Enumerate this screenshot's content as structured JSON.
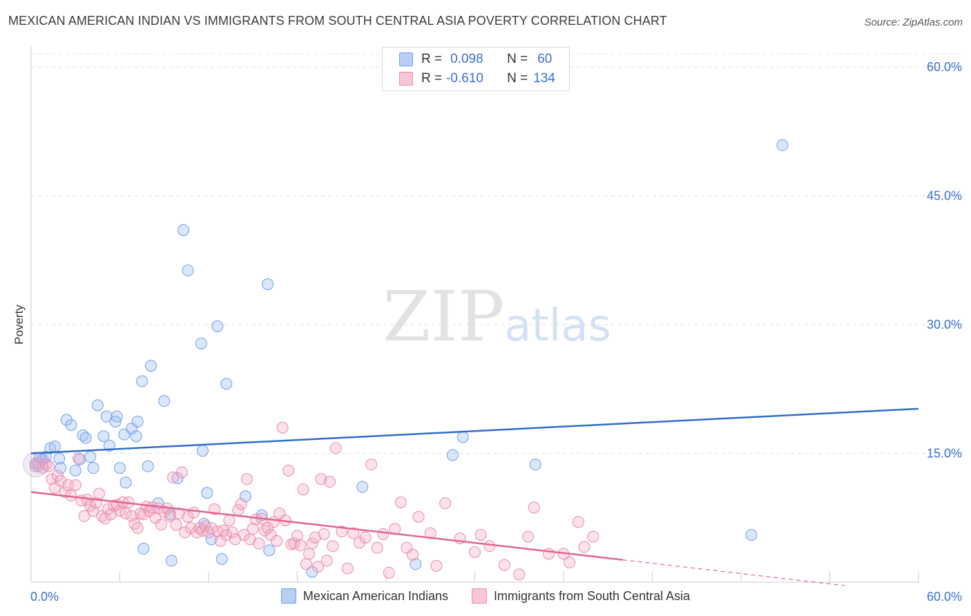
{
  "header": {
    "title": "MEXICAN AMERICAN INDIAN VS IMMIGRANTS FROM SOUTH CENTRAL ASIA POVERTY CORRELATION CHART",
    "source": "Source: ZipAtlas.com"
  },
  "watermark": {
    "zip": "ZIP",
    "atlas": "atlas"
  },
  "legend": {
    "rows": [
      {
        "r_key": "R =",
        "r_value": "0.098",
        "n_key": "N =",
        "n_value": "60",
        "color": "#a9c4ef",
        "border": "#5b87d9"
      },
      {
        "r_key": "R =",
        "r_value": "-0.610",
        "n_key": "N =",
        "n_value": "134",
        "color": "#f6bcd0",
        "border": "#e27ba0"
      }
    ]
  },
  "bottom_legend": {
    "series1": "Mexican American Indians",
    "series2": "Immigrants from South Central Asia"
  },
  "chart_data": {
    "type": "scatter",
    "title": "MEXICAN AMERICAN INDIAN VS IMMIGRANTS FROM SOUTH CENTRAL ASIA POVERTY CORRELATION CHART",
    "xlabel": "",
    "ylabel": "Poverty",
    "xlim": [
      0,
      60
    ],
    "ylim": [
      0,
      63
    ],
    "x_tick_labels": [
      "0.0%",
      "60.0%"
    ],
    "y_tick_labels": [
      {
        "value": 15,
        "label": "15.0%"
      },
      {
        "value": 30,
        "label": "30.0%"
      },
      {
        "value": 45,
        "label": "45.0%"
      },
      {
        "value": 60,
        "label": "60.0%"
      }
    ],
    "grid": true,
    "legend_position": "top-center",
    "series": [
      {
        "name": "Mexican American Indians",
        "color": "#6f9ee6",
        "fill": "rgba(150,185,240,0.35)",
        "trend": {
          "x": [
            0,
            60
          ],
          "y": [
            15.0,
            20.2
          ],
          "color": "#2f6cc9"
        },
        "points": [
          [
            0.3,
            13.8
          ],
          [
            0.5,
            13.5
          ],
          [
            0.6,
            14.5
          ],
          [
            0.8,
            14.3
          ],
          [
            1.0,
            14.6
          ],
          [
            1.3,
            15.6
          ],
          [
            1.6,
            15.8
          ],
          [
            1.9,
            14.4
          ],
          [
            2.0,
            13.3
          ],
          [
            2.4,
            18.9
          ],
          [
            2.7,
            18.3
          ],
          [
            3.0,
            13.0
          ],
          [
            3.3,
            14.3
          ],
          [
            3.5,
            17.1
          ],
          [
            3.7,
            16.8
          ],
          [
            4.0,
            14.6
          ],
          [
            4.2,
            13.3
          ],
          [
            4.5,
            20.6
          ],
          [
            4.9,
            17.0
          ],
          [
            5.1,
            19.3
          ],
          [
            5.3,
            15.9
          ],
          [
            5.7,
            18.7
          ],
          [
            5.8,
            19.3
          ],
          [
            6.0,
            13.3
          ],
          [
            6.3,
            17.2
          ],
          [
            6.4,
            11.6
          ],
          [
            6.8,
            17.9
          ],
          [
            7.1,
            17.0
          ],
          [
            7.2,
            18.7
          ],
          [
            7.5,
            23.4
          ],
          [
            7.6,
            3.9
          ],
          [
            7.9,
            13.5
          ],
          [
            8.1,
            25.2
          ],
          [
            8.6,
            9.2
          ],
          [
            9.0,
            21.1
          ],
          [
            9.4,
            7.9
          ],
          [
            9.5,
            2.5
          ],
          [
            9.9,
            12.1
          ],
          [
            10.3,
            41.0
          ],
          [
            10.6,
            36.3
          ],
          [
            11.5,
            27.8
          ],
          [
            11.6,
            15.3
          ],
          [
            11.7,
            6.8
          ],
          [
            11.9,
            10.4
          ],
          [
            12.2,
            5.0
          ],
          [
            12.6,
            29.8
          ],
          [
            12.9,
            2.7
          ],
          [
            13.2,
            23.1
          ],
          [
            14.5,
            10.0
          ],
          [
            15.6,
            7.8
          ],
          [
            16.0,
            34.7
          ],
          [
            16.1,
            3.7
          ],
          [
            19.0,
            1.2
          ],
          [
            22.4,
            11.1
          ],
          [
            26.0,
            2.1
          ],
          [
            28.5,
            14.8
          ],
          [
            29.2,
            16.9
          ],
          [
            34.1,
            13.7
          ],
          [
            48.7,
            5.5
          ],
          [
            50.8,
            50.9
          ]
        ]
      },
      {
        "name": "Immigrants from South Central Asia",
        "color": "#e88aab",
        "fill": "rgba(244,170,196,0.35)",
        "trend": {
          "x": [
            0,
            40
          ],
          "y": [
            10.5,
            2.6
          ],
          "color": "#e0658e"
        },
        "trend_dashed": {
          "x": [
            40,
            55
          ],
          "y": [
            2.6,
            -0.4
          ]
        },
        "points": [
          [
            0.3,
            13.5
          ],
          [
            0.5,
            13.9
          ],
          [
            0.8,
            13.3
          ],
          [
            1.0,
            13.7
          ],
          [
            1.2,
            13.5
          ],
          [
            1.4,
            12.0
          ],
          [
            1.6,
            11.0
          ],
          [
            1.8,
            12.4
          ],
          [
            2.0,
            11.8
          ],
          [
            2.3,
            10.5
          ],
          [
            2.5,
            11.3
          ],
          [
            2.7,
            10.1
          ],
          [
            3.0,
            11.3
          ],
          [
            3.2,
            14.4
          ],
          [
            3.4,
            9.5
          ],
          [
            3.6,
            7.7
          ],
          [
            3.8,
            9.6
          ],
          [
            4.0,
            8.9
          ],
          [
            4.2,
            8.3
          ],
          [
            4.4,
            9.2
          ],
          [
            4.6,
            10.3
          ],
          [
            4.8,
            7.7
          ],
          [
            5.0,
            7.4
          ],
          [
            5.2,
            8.5
          ],
          [
            5.4,
            7.9
          ],
          [
            5.6,
            8.9
          ],
          [
            5.8,
            9.0
          ],
          [
            6.0,
            8.3
          ],
          [
            6.2,
            9.3
          ],
          [
            6.4,
            8.0
          ],
          [
            6.6,
            9.3
          ],
          [
            6.8,
            7.7
          ],
          [
            7.0,
            6.8
          ],
          [
            7.2,
            6.3
          ],
          [
            7.4,
            8.0
          ],
          [
            7.6,
            7.9
          ],
          [
            7.8,
            8.8
          ],
          [
            8.0,
            8.3
          ],
          [
            8.2,
            8.7
          ],
          [
            8.4,
            7.5
          ],
          [
            8.6,
            8.6
          ],
          [
            8.8,
            6.7
          ],
          [
            9.0,
            8.2
          ],
          [
            9.2,
            8.6
          ],
          [
            9.4,
            7.7
          ],
          [
            9.6,
            12.2
          ],
          [
            9.8,
            6.7
          ],
          [
            10.0,
            8.0
          ],
          [
            10.2,
            12.8
          ],
          [
            10.4,
            5.8
          ],
          [
            10.6,
            7.6
          ],
          [
            10.8,
            6.3
          ],
          [
            11.0,
            8.1
          ],
          [
            11.2,
            5.8
          ],
          [
            11.4,
            6.3
          ],
          [
            11.6,
            6.0
          ],
          [
            11.8,
            6.5
          ],
          [
            12.0,
            5.8
          ],
          [
            12.2,
            6.3
          ],
          [
            12.4,
            8.5
          ],
          [
            12.6,
            5.9
          ],
          [
            12.8,
            4.8
          ],
          [
            13.0,
            6.0
          ],
          [
            13.2,
            5.5
          ],
          [
            13.4,
            7.2
          ],
          [
            13.6,
            5.8
          ],
          [
            13.8,
            5.0
          ],
          [
            14.0,
            8.4
          ],
          [
            14.2,
            9.1
          ],
          [
            14.4,
            5.5
          ],
          [
            14.6,
            12.0
          ],
          [
            14.8,
            5.0
          ],
          [
            15.0,
            6.2
          ],
          [
            15.2,
            7.3
          ],
          [
            15.4,
            4.5
          ],
          [
            15.6,
            7.4
          ],
          [
            15.8,
            6.0
          ],
          [
            16.0,
            6.3
          ],
          [
            16.2,
            5.5
          ],
          [
            16.4,
            7.0
          ],
          [
            16.6,
            4.8
          ],
          [
            16.8,
            8.0
          ],
          [
            17.0,
            18.0
          ],
          [
            17.2,
            7.2
          ],
          [
            17.4,
            13.0
          ],
          [
            17.6,
            4.4
          ],
          [
            17.8,
            4.5
          ],
          [
            18.0,
            5.4
          ],
          [
            18.2,
            4.3
          ],
          [
            18.4,
            10.8
          ],
          [
            18.6,
            2.1
          ],
          [
            18.8,
            3.3
          ],
          [
            19.0,
            4.5
          ],
          [
            19.2,
            5.2
          ],
          [
            19.4,
            1.8
          ],
          [
            19.6,
            12.0
          ],
          [
            19.8,
            5.6
          ],
          [
            20.0,
            2.5
          ],
          [
            20.2,
            11.7
          ],
          [
            20.4,
            4.2
          ],
          [
            20.6,
            15.6
          ],
          [
            21.0,
            5.9
          ],
          [
            21.4,
            1.6
          ],
          [
            21.8,
            5.7
          ],
          [
            22.2,
            4.6
          ],
          [
            22.6,
            5.2
          ],
          [
            23.0,
            13.7
          ],
          [
            23.4,
            4.0
          ],
          [
            23.8,
            5.6
          ],
          [
            24.2,
            1.1
          ],
          [
            24.6,
            6.2
          ],
          [
            25.0,
            9.3
          ],
          [
            25.4,
            4.0
          ],
          [
            25.8,
            3.2
          ],
          [
            26.2,
            7.6
          ],
          [
            27.0,
            5.7
          ],
          [
            27.4,
            1.9
          ],
          [
            28.0,
            9.2
          ],
          [
            29.0,
            5.1
          ],
          [
            30.0,
            3.5
          ],
          [
            30.4,
            5.5
          ],
          [
            31.0,
            4.2
          ],
          [
            32.0,
            2.0
          ],
          [
            33.0,
            0.9
          ],
          [
            33.6,
            5.3
          ],
          [
            34.0,
            8.7
          ],
          [
            35.0,
            3.3
          ],
          [
            36.0,
            3.3
          ],
          [
            36.4,
            2.3
          ],
          [
            37.0,
            7.0
          ],
          [
            37.4,
            4.1
          ],
          [
            38.0,
            5.3
          ]
        ]
      }
    ]
  }
}
